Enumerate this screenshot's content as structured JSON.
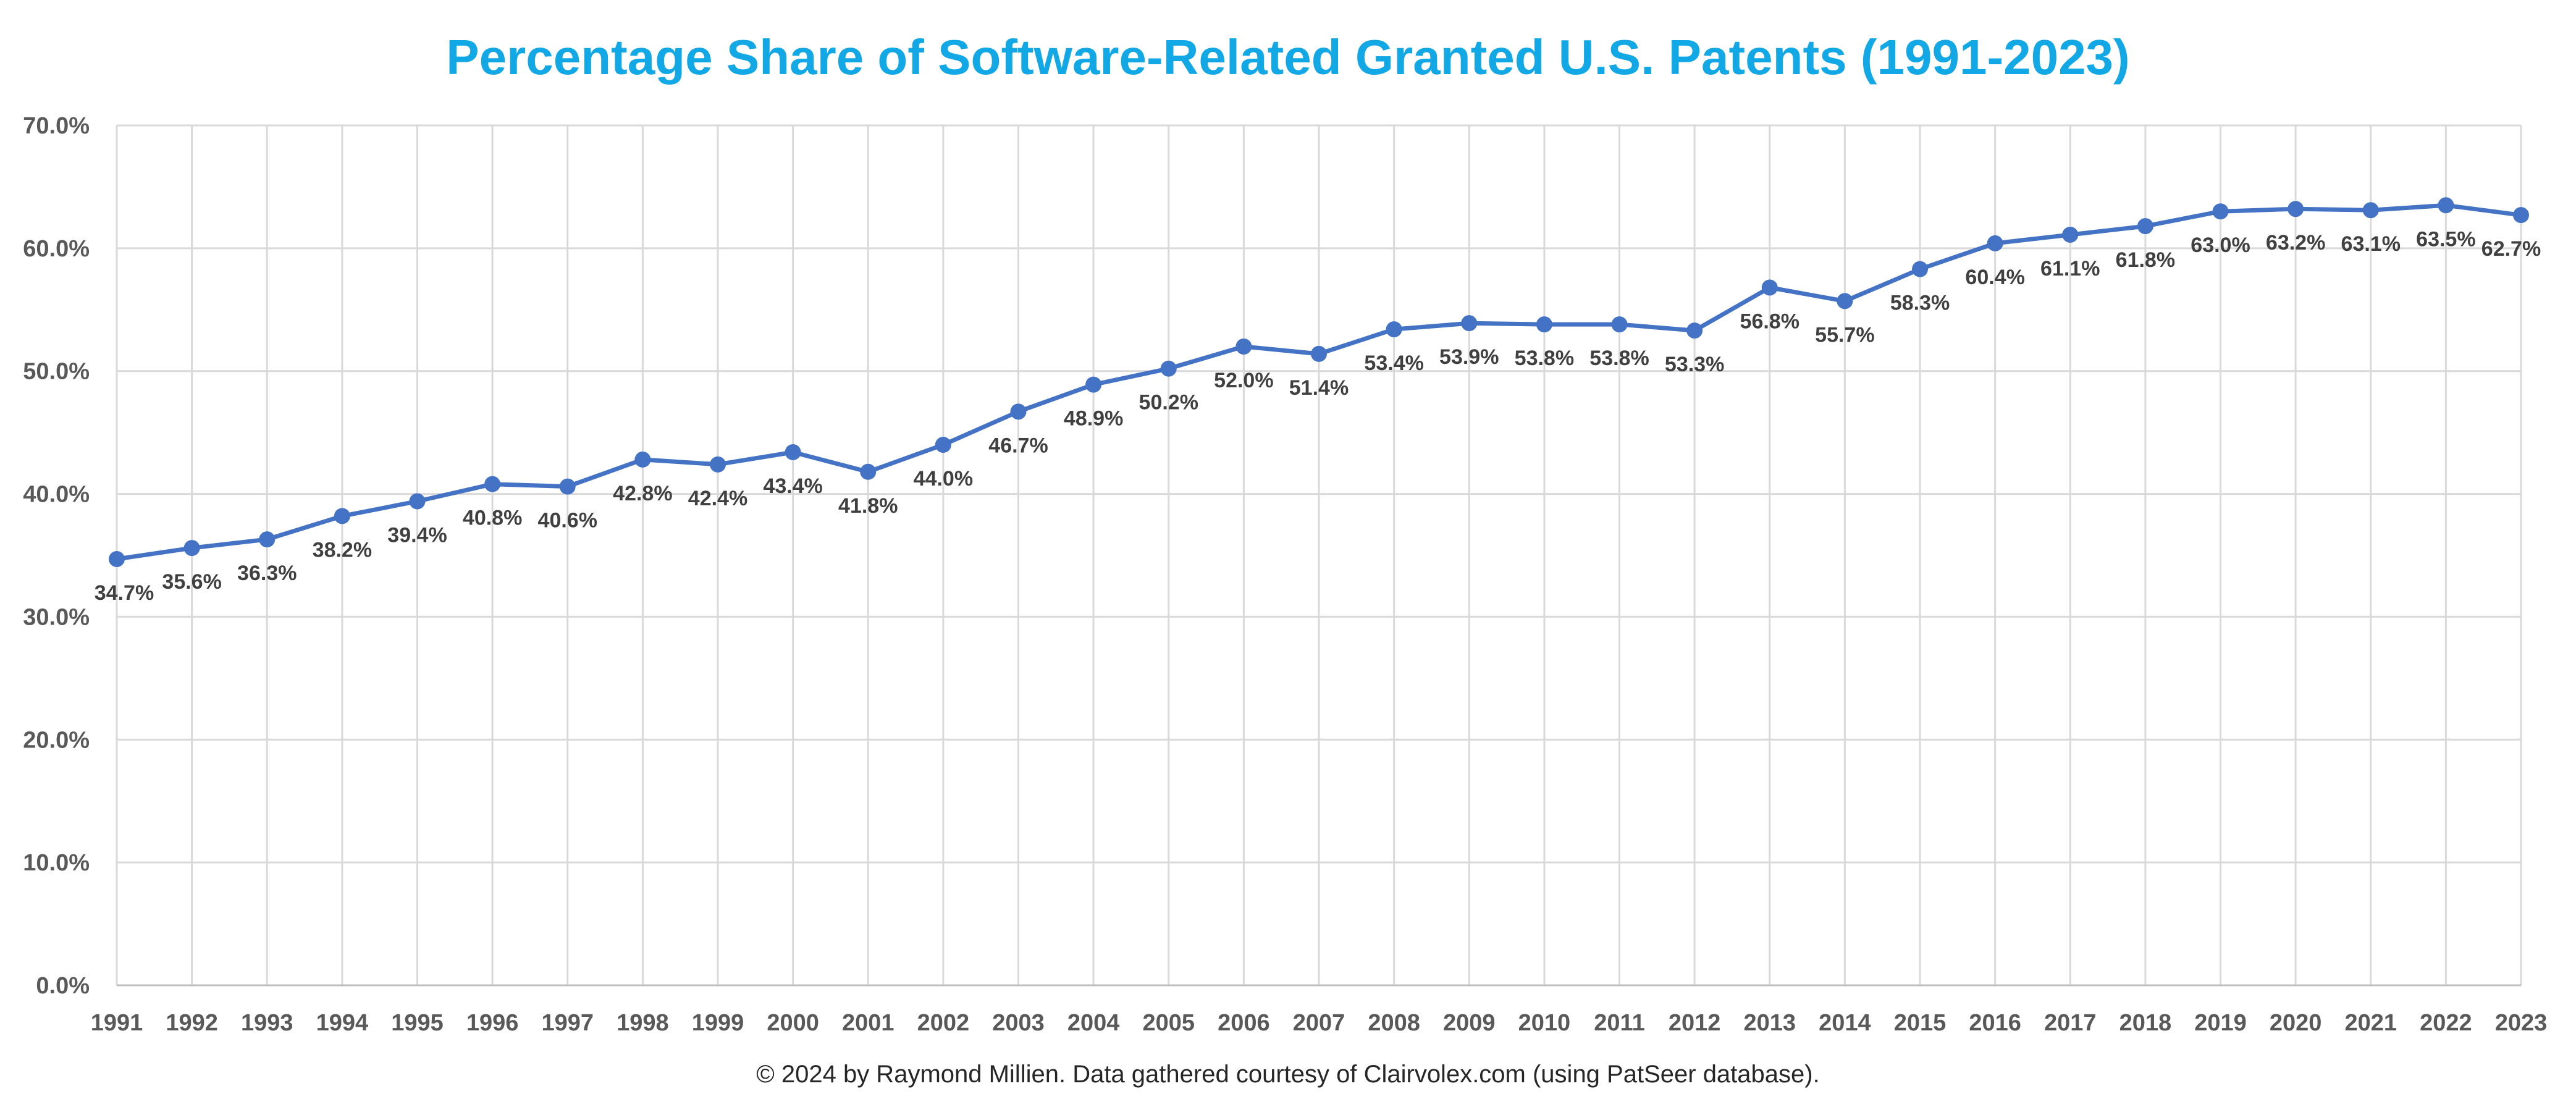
{
  "chart_data": {
    "type": "line",
    "title": "Percentage Share of Software-Related Granted U.S. Patents (1991-2023)",
    "footer": "© 2024 by Raymond Millien. Data gathered courtesy of Clairvolex.com (using PatSeer database).",
    "xlabel": "",
    "ylabel": "",
    "categories": [
      "1991",
      "1992",
      "1993",
      "1994",
      "1995",
      "1996",
      "1997",
      "1998",
      "1999",
      "2000",
      "2001",
      "2002",
      "2003",
      "2004",
      "2005",
      "2006",
      "2007",
      "2008",
      "2009",
      "2010",
      "2011",
      "2012",
      "2013",
      "2014",
      "2015",
      "2016",
      "2017",
      "2018",
      "2019",
      "2020",
      "2021",
      "2022",
      "2023"
    ],
    "values": [
      34.7,
      35.6,
      36.3,
      38.2,
      39.4,
      40.8,
      40.6,
      42.8,
      42.4,
      43.4,
      41.8,
      44.0,
      46.7,
      48.9,
      50.2,
      52.0,
      51.4,
      53.4,
      53.9,
      53.8,
      53.8,
      53.3,
      56.8,
      55.7,
      58.3,
      60.4,
      61.1,
      61.8,
      63.0,
      63.2,
      63.1,
      63.5,
      62.7
    ],
    "data_labels": [
      "34.7%",
      "35.6%",
      "36.3%",
      "38.2%",
      "39.4%",
      "40.8%",
      "40.6%",
      "42.8%",
      "42.4%",
      "43.4%",
      "41.8%",
      "44.0%",
      "46.7%",
      "48.9%",
      "50.2%",
      "52.0%",
      "51.4%",
      "53.4%",
      "53.9%",
      "53.8%",
      "53.8%",
      "53.3%",
      "56.8%",
      "55.7%",
      "58.3%",
      "60.4%",
      "61.1%",
      "61.8%",
      "63.0%",
      "63.2%",
      "63.1%",
      "63.5%",
      "62.7%"
    ],
    "y_ticks": [
      "0.0%",
      "10.0%",
      "20.0%",
      "30.0%",
      "40.0%",
      "50.0%",
      "60.0%",
      "70.0%"
    ],
    "ylim": [
      0,
      70
    ],
    "y_step": 10,
    "grid": true,
    "legend": "none",
    "colors": {
      "title": "#12A8E6",
      "line": "#4472C4",
      "grid": "#D9D9D9",
      "tick_text": "#595959",
      "label_text": "#404040",
      "footer_text": "#262626"
    }
  }
}
